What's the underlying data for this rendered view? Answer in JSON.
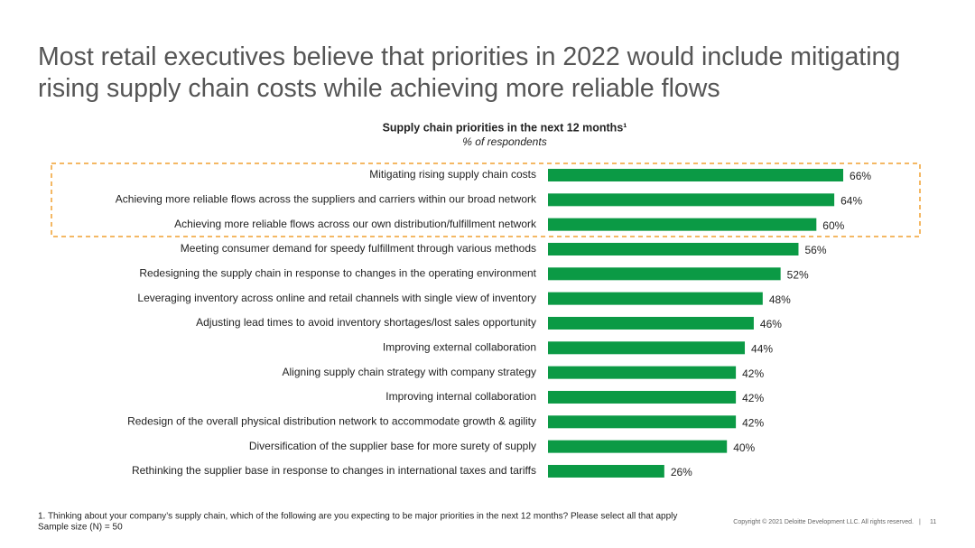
{
  "slide_title": "Most retail executives believe that priorities in 2022 would include mitigating rising supply chain costs while achieving more reliable flows",
  "chart_data": {
    "type": "bar",
    "orientation": "horizontal",
    "title": "Supply chain priorities in the next 12 months¹",
    "subtitle": "% of respondents",
    "categories": [
      "Mitigating rising supply chain costs",
      "Achieving more reliable flows across the suppliers and carriers within our broad network",
      "Achieving more reliable flows across our own distribution/fulfillment network",
      "Meeting consumer demand for speedy fulfillment through various methods",
      "Redesigning the supply chain in response to changes in the operating environment",
      "Leveraging inventory across online and retail channels with single view of inventory",
      "Adjusting lead times to avoid inventory shortages/lost sales opportunity",
      "Improving external collaboration",
      "Aligning supply chain strategy with company strategy",
      "Improving internal collaboration",
      "Redesign of the overall physical distribution network to accommodate growth & agility",
      "Diversification of the supplier base for more surety of supply",
      "Rethinking the supplier base in response to changes in international taxes and tariffs"
    ],
    "values": [
      66,
      64,
      60,
      56,
      52,
      48,
      46,
      44,
      42,
      42,
      42,
      40,
      26
    ],
    "value_labels": [
      "66%",
      "64%",
      "60%",
      "56%",
      "52%",
      "48%",
      "46%",
      "44%",
      "42%",
      "42%",
      "42%",
      "40%",
      "26%"
    ],
    "color": "#0b9a45"
  },
  "footnote": "1. Thinking about your company’s supply chain, which of the following are you expecting to be major priorities in the next 12 months? Please select all that apply",
  "sample_size": "Sample size (N) = 50",
  "copyright": "Copyright © 2021 Deloitte Development LLC. All rights reserved.",
  "page_number": "11"
}
